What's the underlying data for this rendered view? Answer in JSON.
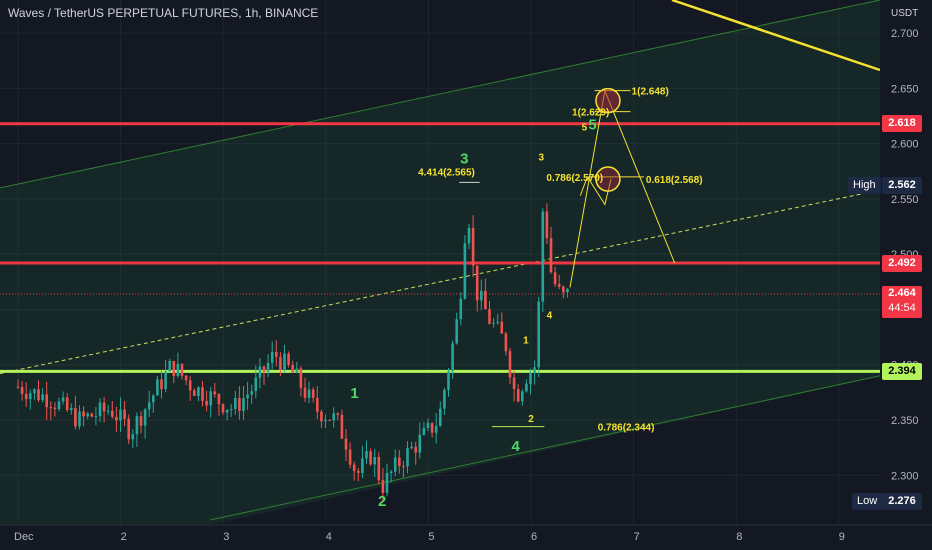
{
  "header": {
    "title": "Waves / TetherUS PERPETUAL FUTURES, 1h, BINANCE",
    "currency": "USDT"
  },
  "colors": {
    "background": "#141823",
    "up": "#26a69a",
    "down": "#ef5350",
    "red_level": "#f23645",
    "green_level": "#b2f35c",
    "yellow": "#f5e22f"
  },
  "chart_data": {
    "type": "candlestick",
    "ylim": [
      2.255,
      2.73
    ],
    "y_ticks": [
      "2.700",
      "2.650",
      "2.600",
      "2.550",
      "2.500",
      "2.450",
      "2.400",
      "2.350",
      "2.300"
    ],
    "x_ticks": [
      "Dec",
      "2",
      "3",
      "4",
      "5",
      "6",
      "7",
      "8",
      "9"
    ],
    "current_price": {
      "value": "2.464",
      "countdown": "44:54"
    },
    "high": {
      "label": "High",
      "value": "2.562"
    },
    "low": {
      "label": "Low",
      "value": "2.276"
    },
    "levels": [
      {
        "name": "resistance",
        "value": "2.618",
        "color": "#f23645"
      },
      {
        "name": "resistance",
        "value": "2.492",
        "color": "#f23645"
      },
      {
        "name": "support",
        "value": "2.394",
        "color": "#b2f35c"
      }
    ],
    "wave_labels": [
      {
        "text": "3",
        "color": "#4cd964",
        "date": "5.35",
        "price": 2.582
      },
      {
        "text": "1",
        "color": "#4cd964",
        "date": "4.28",
        "price": 2.37
      },
      {
        "text": "2",
        "color": "#4cd964",
        "date": "4.55",
        "price": 2.272
      },
      {
        "text": "4",
        "color": "#4cd964",
        "date": "5.85",
        "price": 2.322
      },
      {
        "text": "5",
        "color": "#4cd964",
        "date": "6.60",
        "price": 2.613
      },
      {
        "text": "5",
        "color": "#f5e22f",
        "date": "6.52",
        "price": 2.612
      },
      {
        "text": "3",
        "color": "#f5e22f",
        "date": "6.10",
        "price": 2.585
      },
      {
        "text": "4",
        "color": "#f5e22f",
        "date": "6.18",
        "price": 2.442
      },
      {
        "text": "1",
        "color": "#f5e22f",
        "date": "5.95",
        "price": 2.419
      },
      {
        "text": "2",
        "color": "#f5e22f",
        "date": "6.00",
        "price": 2.348
      }
    ],
    "fib_labels": [
      {
        "text": "1(2.648)",
        "date": "6.98",
        "price": 2.648
      },
      {
        "text": "1(2.629)",
        "date": "6.40",
        "price": 2.629
      },
      {
        "text": "4.414(2.565)",
        "date": "4.90",
        "price": 2.575
      },
      {
        "text": "0.786(2.570)",
        "date": "6.15",
        "price": 2.57
      },
      {
        "text": "0.618(2.568)",
        "date": "7.12",
        "price": 2.568
      },
      {
        "text": "0.786(2.344)",
        "date": "6.65",
        "price": 2.344
      }
    ]
  }
}
